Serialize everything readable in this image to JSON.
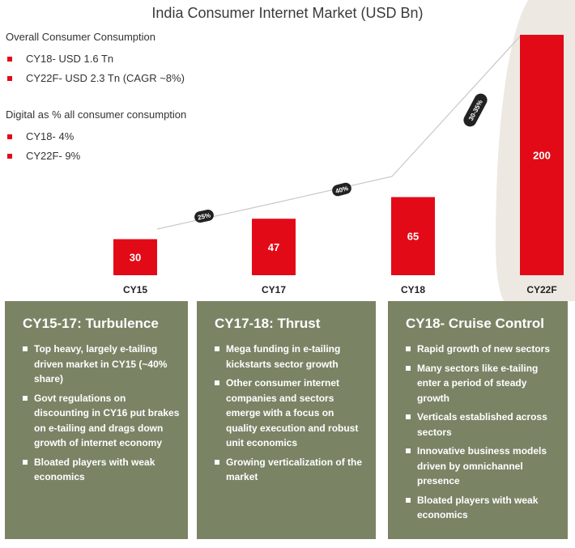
{
  "title": "India Consumer Internet Market (USD Bn)",
  "colors": {
    "bar": "#e30a17",
    "panel": "#7a8465",
    "bullet": "#e30a17",
    "pill": "#222222",
    "bgshape": "#ede9e2"
  },
  "consumption": {
    "heading": "Overall Consumer Consumption",
    "items": [
      "CY18- USD 1.6 Tn",
      "CY22F- USD 2.3 Tn (CAGR ~8%)"
    ]
  },
  "digital": {
    "heading": "Digital as % all consumer consumption",
    "items": [
      "CY18- 4%",
      "CY22F- 9%"
    ]
  },
  "chart_data": {
    "type": "bar",
    "title": "India Consumer Internet Market (USD Bn)",
    "categories": [
      "CY15",
      "CY17",
      "CY18",
      "CY22F"
    ],
    "values": [
      30,
      47,
      65,
      200
    ],
    "data_labels": [
      "30",
      "47",
      "65",
      "200"
    ],
    "growth_labels": [
      "25%",
      "40%",
      "30-35%"
    ],
    "ylim": [
      0,
      200
    ]
  },
  "panels": [
    {
      "title": "CY15-17: Turbulence",
      "bullets": [
        "Top heavy, largely e-tailing driven market in CY15 (~40% share)",
        "Govt regulations on discounting in CY16 put brakes on e-tailing and drags down growth of internet economy",
        "Bloated players with weak economics"
      ]
    },
    {
      "title": "CY17-18: Thrust",
      "bullets": [
        "Mega funding in e-tailing kickstarts sector growth",
        "Other consumer internet companies and sectors emerge with a focus on quality execution and robust unit economics",
        "Growing verticalization of the market"
      ]
    },
    {
      "title": "CY18- Cruise Control",
      "bullets": [
        "Rapid growth of new sectors",
        "Many sectors like e-tailing enter a period of steady growth",
        "Verticals established across sectors",
        "Innovative business models driven by omnichannel presence",
        "Bloated players with weak economics"
      ]
    }
  ]
}
